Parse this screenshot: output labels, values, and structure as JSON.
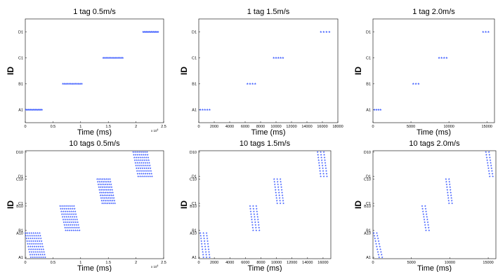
{
  "figure": {
    "point_color": "#3d5cff",
    "ylabel_common": "ID",
    "xlabel_common": "Time (ms)"
  },
  "chart_data": [
    {
      "type": "scatter",
      "title": "1 tag 0.5m/s",
      "xlabel": "Time (ms)",
      "ylabel": "ID",
      "xlim": [
        0,
        25000
      ],
      "ylim": [
        0.5,
        4.5
      ],
      "xtick_values": [
        0,
        5000,
        10000,
        15000,
        20000,
        25000
      ],
      "xtick_labels": [
        "0",
        "0.5",
        "1",
        "1.5",
        "2",
        "2.5"
      ],
      "x_multiplier": "x 10^4",
      "ytick_values": [
        1,
        2,
        3,
        4
      ],
      "ytick_labels": [
        "A1",
        "B1",
        "C1",
        "D1"
      ],
      "series": [
        {
          "groups": [
            {
              "y": 1,
              "x_start": 100,
              "x_end": 3000,
              "count": 14
            },
            {
              "y": 2,
              "x_start": 6800,
              "x_end": 10200,
              "count": 13
            },
            {
              "y": 3,
              "x_start": 14100,
              "x_end": 17600,
              "count": 14
            },
            {
              "y": 4,
              "x_start": 21300,
              "x_end": 24000,
              "count": 14
            }
          ]
        }
      ]
    },
    {
      "type": "scatter",
      "title": "1 tag 1.5m/s",
      "xlabel": "Time (ms)",
      "ylabel": "ID",
      "xlim": [
        0,
        18000
      ],
      "ylim": [
        0.5,
        4.5
      ],
      "xtick_values": [
        0,
        2000,
        4000,
        6000,
        8000,
        10000,
        12000,
        14000,
        16000,
        18000
      ],
      "xtick_labels": [
        "0",
        "2000",
        "4000",
        "6000",
        "8000",
        "10000",
        "12000",
        "14000",
        "16000",
        "18000"
      ],
      "ytick_values": [
        1,
        2,
        3,
        4
      ],
      "ytick_labels": [
        "A1",
        "B1",
        "C1",
        "D1"
      ],
      "series": [
        {
          "groups": [
            {
              "y": 1,
              "x_start": 200,
              "x_end": 1400,
              "count": 5
            },
            {
              "y": 2,
              "x_start": 6300,
              "x_end": 7300,
              "count": 4
            },
            {
              "y": 3,
              "x_start": 9700,
              "x_end": 10900,
              "count": 5
            },
            {
              "y": 4,
              "x_start": 15800,
              "x_end": 16900,
              "count": 4
            }
          ]
        }
      ]
    },
    {
      "type": "scatter",
      "title": "1 tag 2.0m/s",
      "xlabel": "Time (ms)",
      "ylabel": "ID",
      "xlim": [
        0,
        16000
      ],
      "ylim": [
        0.5,
        4.5
      ],
      "xtick_values": [
        0,
        5000,
        10000,
        15000
      ],
      "xtick_labels": [
        "0",
        "5000",
        "10000",
        "15000"
      ],
      "ytick_values": [
        1,
        2,
        3,
        4
      ],
      "ytick_labels": [
        "A1",
        "B1",
        "C1",
        "D1"
      ],
      "series": [
        {
          "groups": [
            {
              "y": 1,
              "x_start": 200,
              "x_end": 1000,
              "count": 4
            },
            {
              "y": 2,
              "x_start": 5300,
              "x_end": 6000,
              "count": 3
            },
            {
              "y": 3,
              "x_start": 8700,
              "x_end": 9700,
              "count": 4
            },
            {
              "y": 4,
              "x_start": 14500,
              "x_end": 15200,
              "count": 3
            }
          ]
        }
      ]
    },
    {
      "type": "scatter",
      "title": "10 tags 0.5m/s",
      "xlabel": "Time (ms)",
      "ylabel": "ID",
      "xlim": [
        0,
        25000
      ],
      "ylim": [
        0.5,
        40.5
      ],
      "xtick_values": [
        0,
        5000,
        10000,
        15000,
        20000,
        25000
      ],
      "xtick_labels": [
        "0",
        "0.5",
        "1",
        "1.5",
        "2",
        "2.5"
      ],
      "x_multiplier": "x 10^4",
      "ytick_values": [
        1,
        10,
        11,
        20,
        21,
        30,
        31,
        40
      ],
      "ytick_labels": [
        "A1",
        "A10",
        "B1",
        "B10",
        "C1",
        "C10",
        "D1",
        "D10"
      ],
      "series": [
        {
          "groups": [
            {
              "y_start": 1,
              "y_end": 10,
              "x_start": 0,
              "x_end": 2600,
              "x_shift": 1000,
              "count": 8
            },
            {
              "y_start": 11,
              "y_end": 20,
              "x_start": 6300,
              "x_end": 8800,
              "x_shift": 1000,
              "count": 8
            },
            {
              "y_start": 21,
              "y_end": 30,
              "x_start": 13000,
              "x_end": 15300,
              "x_shift": 900,
              "count": 8
            },
            {
              "y_start": 31,
              "y_end": 40,
              "x_start": 19500,
              "x_end": 22000,
              "x_shift": 900,
              "count": 8
            }
          ]
        }
      ]
    },
    {
      "type": "scatter",
      "title": "10 tags 1.5m/s",
      "xlabel": "Time (ms)",
      "ylabel": "ID",
      "xlim": [
        0,
        17000
      ],
      "ylim": [
        0.5,
        40.5
      ],
      "xtick_values": [
        0,
        2000,
        4000,
        6000,
        8000,
        10000,
        12000,
        14000,
        16000
      ],
      "xtick_labels": [
        "0",
        "2000",
        "4000",
        "6000",
        "8000",
        "10000",
        "12000",
        "14000",
        "16000"
      ],
      "ytick_values": [
        1,
        10,
        11,
        20,
        21,
        30,
        31,
        40
      ],
      "ytick_labels": [
        "A1",
        "A10",
        "B1",
        "B10",
        "C1",
        "C10",
        "D1",
        "D10"
      ],
      "series": [
        {
          "groups": [
            {
              "y_start": 1,
              "y_end": 10,
              "x_start": 200,
              "x_end": 1000,
              "x_shift": 400,
              "count": 3
            },
            {
              "y_start": 11,
              "y_end": 20,
              "x_start": 6600,
              "x_end": 7400,
              "x_shift": 400,
              "count": 3
            },
            {
              "y_start": 21,
              "y_end": 30,
              "x_start": 9700,
              "x_end": 10500,
              "x_shift": 400,
              "count": 3
            },
            {
              "y_start": 31,
              "y_end": 40,
              "x_start": 15300,
              "x_end": 16100,
              "x_shift": 400,
              "count": 3
            }
          ]
        }
      ]
    },
    {
      "type": "scatter",
      "title": "10 tags 2.0m/s",
      "xlabel": "Time (ms)",
      "ylabel": "ID",
      "xlim": [
        0,
        16000
      ],
      "ylim": [
        0.5,
        40.5
      ],
      "xtick_values": [
        0,
        5000,
        10000,
        15000
      ],
      "xtick_labels": [
        "0",
        "5000",
        "10000",
        "15000"
      ],
      "ytick_values": [
        1,
        10,
        11,
        20,
        21,
        30,
        31,
        40
      ],
      "ytick_labels": [
        "A1",
        "A10",
        "B1",
        "B10",
        "C1",
        "C10",
        "D1",
        "D10"
      ],
      "series": [
        {
          "groups": [
            {
              "y_start": 1,
              "y_end": 10,
              "x_start": 100,
              "x_end": 500,
              "x_shift": 700,
              "count": 2
            },
            {
              "y_start": 11,
              "y_end": 20,
              "x_start": 6400,
              "x_end": 6800,
              "x_shift": 500,
              "count": 2
            },
            {
              "y_start": 21,
              "y_end": 30,
              "x_start": 9500,
              "x_end": 9900,
              "x_shift": 400,
              "count": 2
            },
            {
              "y_start": 31,
              "y_end": 40,
              "x_start": 14700,
              "x_end": 15100,
              "x_shift": 500,
              "count": 2
            }
          ]
        }
      ]
    }
  ]
}
